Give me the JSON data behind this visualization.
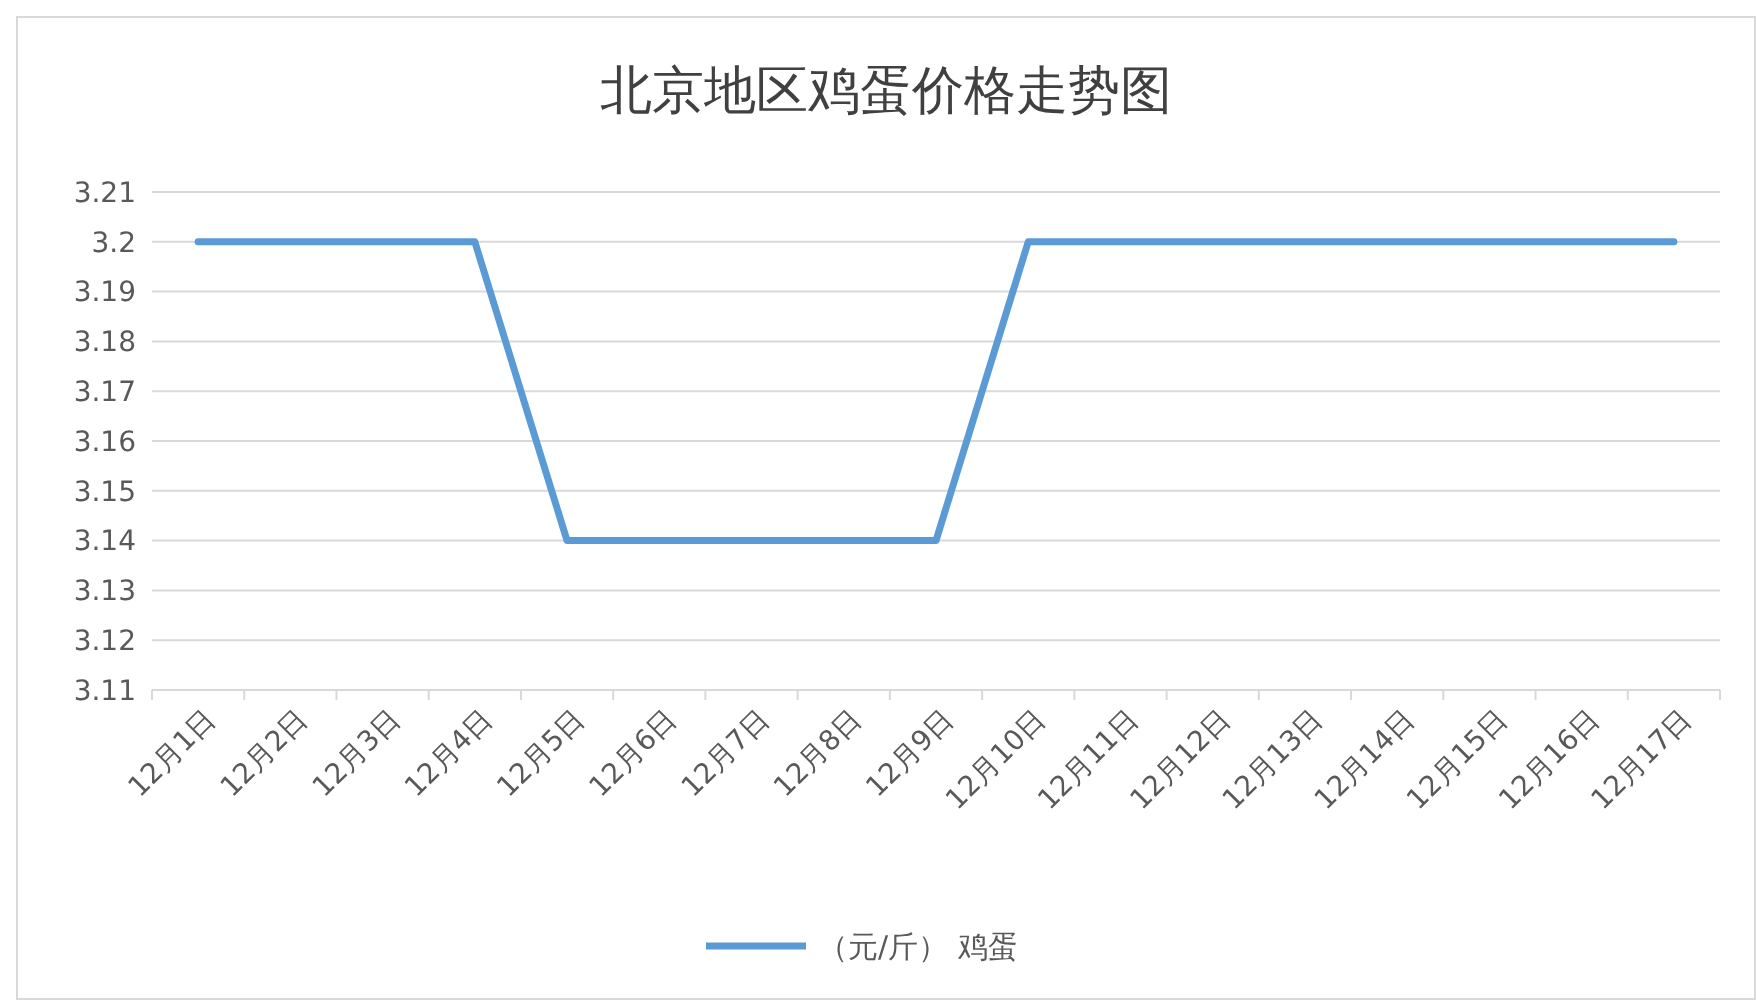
{
  "chart_data": {
    "type": "line",
    "title": "北京地区鸡蛋价格走势图",
    "categories": [
      "12月1日",
      "12月2日",
      "12月3日",
      "12月4日",
      "12月5日",
      "12月6日",
      "12月7日",
      "12月8日",
      "12月9日",
      "12月10日",
      "12月11日",
      "12月12日",
      "12月13日",
      "12月14日",
      "12月15日",
      "12月16日",
      "12月17日"
    ],
    "series": [
      {
        "name": "（元/斤） 鸡蛋",
        "color": "#5b9bd5",
        "values": [
          3.2,
          3.2,
          3.2,
          3.2,
          3.14,
          3.14,
          3.14,
          3.14,
          3.14,
          3.2,
          3.2,
          3.2,
          3.2,
          3.2,
          3.2,
          3.2,
          3.2
        ]
      }
    ],
    "ylim": [
      3.11,
      3.21
    ],
    "yticks": [
      3.11,
      3.12,
      3.13,
      3.14,
      3.15,
      3.16,
      3.17,
      3.18,
      3.19,
      3.2,
      3.21
    ],
    "grid": "y",
    "legend": "bottom",
    "marker": "none",
    "line_style": "solid"
  }
}
